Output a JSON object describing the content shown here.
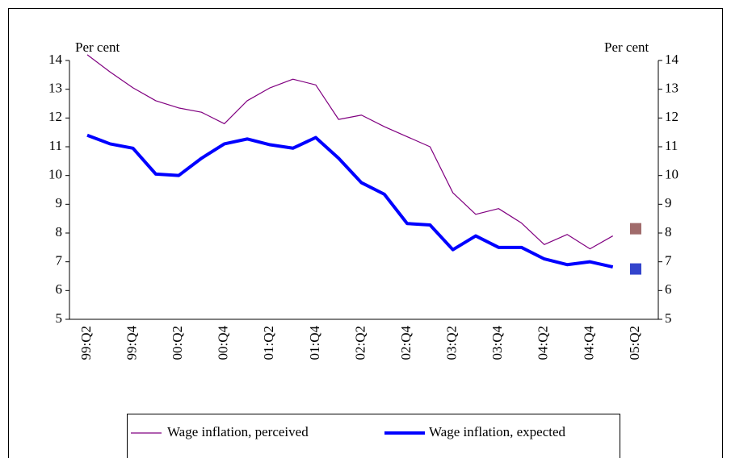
{
  "chart_data": {
    "type": "line",
    "ylabel": "Per cent",
    "y2label": "Per cent",
    "categories": [
      "99:Q2",
      null,
      "99:Q4",
      null,
      "00:Q2",
      null,
      "00:Q4",
      null,
      "01:Q2",
      null,
      "01:Q4",
      null,
      "02:Q2",
      null,
      "02:Q4",
      null,
      "03:Q2",
      null,
      "03:Q4",
      null,
      "04:Q2",
      null,
      "04:Q4",
      null,
      "05:Q2"
    ],
    "series": [
      {
        "name": "Wage inflation, perceived",
        "color": "#800080",
        "width": 1.2,
        "marker_color": "#a06b6b",
        "values": [
          14.2,
          13.6,
          13.05,
          12.6,
          12.35,
          12.2,
          11.8,
          12.6,
          13.05,
          13.35,
          13.15,
          11.95,
          12.1,
          11.7,
          11.35,
          11.0,
          9.4,
          8.65,
          8.85,
          8.35,
          7.6,
          7.95,
          7.45,
          7.9,
          null
        ],
        "marker_values": [
          null,
          null,
          null,
          null,
          null,
          null,
          null,
          null,
          null,
          null,
          null,
          null,
          null,
          null,
          null,
          null,
          null,
          null,
          null,
          null,
          null,
          null,
          null,
          null,
          8.15
        ]
      },
      {
        "name": "Wage inflation, expected",
        "color": "#0000ff",
        "width": 4,
        "marker_color": "#3344cc",
        "values": [
          11.4,
          11.1,
          10.95,
          10.05,
          10.0,
          10.6,
          11.1,
          11.27,
          11.07,
          10.95,
          11.32,
          10.6,
          9.75,
          9.35,
          8.33,
          8.28,
          7.42,
          7.9,
          7.5,
          7.5,
          7.1,
          6.9,
          7.0,
          6.82,
          null
        ],
        "marker_values": [
          null,
          null,
          null,
          null,
          null,
          null,
          null,
          null,
          null,
          null,
          null,
          null,
          null,
          null,
          null,
          null,
          null,
          null,
          null,
          null,
          null,
          null,
          null,
          null,
          6.75
        ]
      }
    ],
    "ylim": [
      5,
      14
    ],
    "yticks": [
      5,
      6,
      7,
      8,
      9,
      10,
      11,
      12,
      13,
      14
    ],
    "y2lim": [
      5,
      14
    ],
    "y2ticks": [
      5,
      6,
      7,
      8,
      9,
      10,
      11,
      12,
      13,
      14
    ],
    "legend": "bottom"
  }
}
